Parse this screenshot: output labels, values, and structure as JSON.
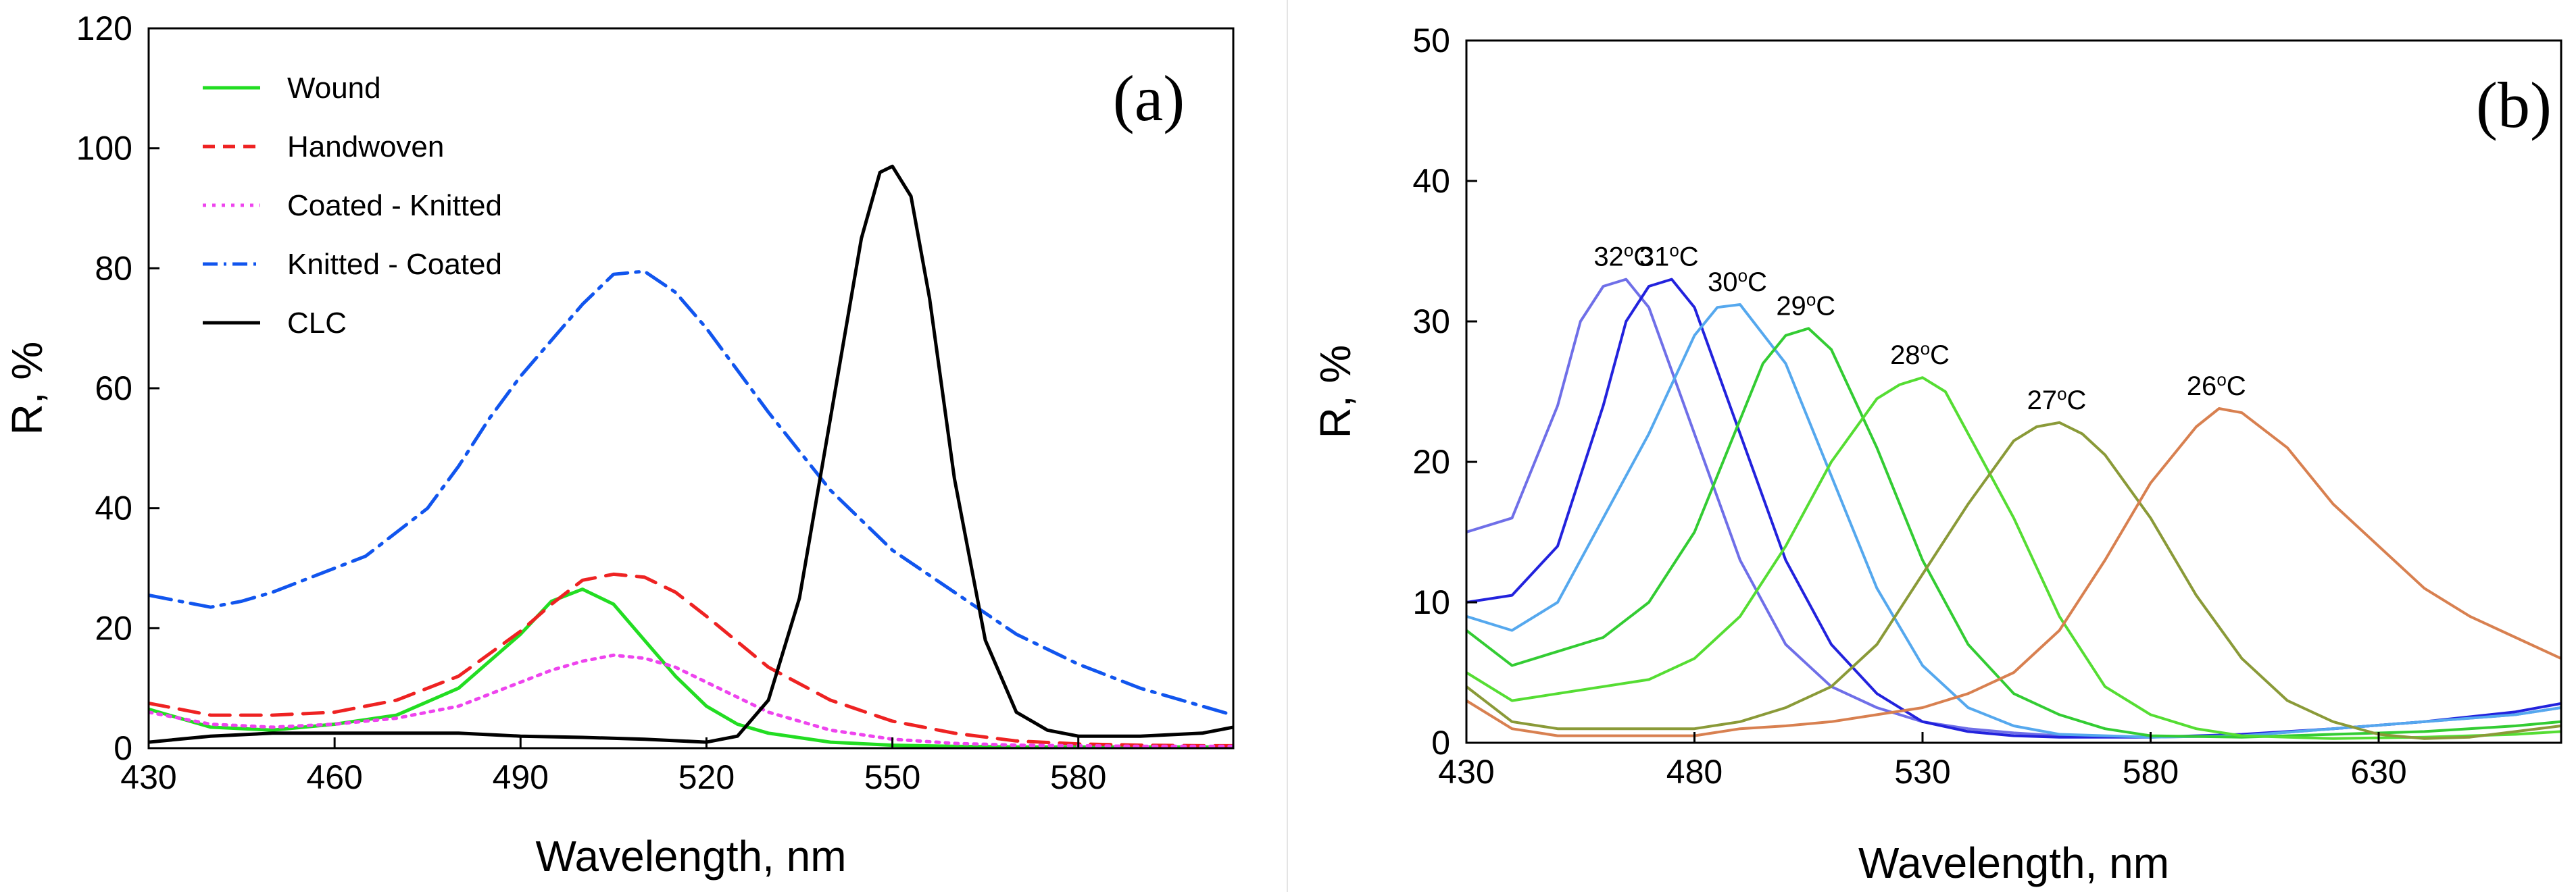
{
  "chart_data": [
    {
      "type": "line",
      "panel_label": "(a)",
      "title": "",
      "xlabel": "Wavelength, nm",
      "ylabel": "R, %",
      "xlim": [
        430,
        605
      ],
      "ylim": [
        0,
        120
      ],
      "xticks": [
        430,
        460,
        490,
        520,
        550,
        580
      ],
      "yticks": [
        0,
        20,
        40,
        60,
        80,
        100,
        120
      ],
      "legend_position": "top-left",
      "series": [
        {
          "name": "Wound",
          "color": "#22dd22",
          "dash": "solid",
          "x": [
            430,
            440,
            450,
            460,
            470,
            480,
            490,
            495,
            500,
            505,
            510,
            515,
            520,
            525,
            530,
            540,
            550,
            560,
            570,
            580,
            590,
            600,
            605
          ],
          "y": [
            6.5,
            3.5,
            3,
            4,
            5.5,
            10,
            19,
            24.5,
            26.5,
            24,
            18,
            12,
            7,
            4,
            2.5,
            1,
            0.5,
            0.3,
            0.2,
            0.2,
            0.2,
            0.2,
            0.2
          ]
        },
        {
          "name": "Handwoven",
          "color": "#ee2222",
          "dash": "dashed",
          "x": [
            430,
            440,
            450,
            460,
            470,
            480,
            490,
            495,
            500,
            505,
            510,
            515,
            520,
            530,
            540,
            550,
            560,
            570,
            580,
            590,
            600,
            605
          ],
          "y": [
            7.5,
            5.5,
            5.5,
            6,
            8,
            12,
            19.5,
            24,
            28,
            29,
            28.5,
            26,
            22,
            13.5,
            8,
            4.5,
            2.5,
            1.2,
            0.7,
            0.5,
            0.4,
            0.4
          ]
        },
        {
          "name": "Coated - Knitted",
          "color": "#ee44ee",
          "dash": "dotted",
          "x": [
            430,
            440,
            450,
            460,
            470,
            480,
            490,
            495,
            500,
            505,
            510,
            515,
            520,
            530,
            540,
            550,
            560,
            570,
            580,
            590,
            600,
            605
          ],
          "y": [
            6,
            4,
            3.5,
            4,
            5,
            7,
            11,
            13,
            14.5,
            15.5,
            15,
            13.5,
            11,
            6,
            3,
            1.5,
            0.8,
            0.5,
            0.4,
            0.3,
            0.3,
            0.3
          ]
        },
        {
          "name": "Knitted - Coated",
          "color": "#1155ee",
          "dash": "dashdot",
          "x": [
            430,
            435,
            440,
            445,
            450,
            460,
            465,
            470,
            475,
            480,
            485,
            490,
            495,
            500,
            505,
            510,
            515,
            520,
            525,
            530,
            540,
            550,
            560,
            570,
            580,
            590,
            600,
            605
          ],
          "y": [
            25.5,
            24.5,
            23.5,
            24.5,
            26,
            30,
            32,
            36,
            40,
            47,
            55,
            62,
            68,
            74,
            79,
            79.5,
            76,
            70,
            63,
            56,
            43,
            33,
            26,
            19,
            14,
            10,
            7,
            5.5
          ]
        },
        {
          "name": "CLC",
          "color": "#000000",
          "dash": "solid",
          "x": [
            430,
            440,
            450,
            460,
            470,
            480,
            490,
            500,
            510,
            520,
            525,
            530,
            535,
            540,
            545,
            548,
            550,
            553,
            556,
            560,
            565,
            570,
            575,
            580,
            590,
            600,
            605
          ],
          "y": [
            1,
            2,
            2.5,
            2.5,
            2.5,
            2.5,
            2,
            1.8,
            1.5,
            1,
            2,
            8,
            25,
            55,
            85,
            96,
            97,
            92,
            75,
            45,
            18,
            6,
            3,
            2,
            2,
            2.5,
            3.5
          ]
        }
      ]
    },
    {
      "type": "line",
      "panel_label": "(b)",
      "title": "",
      "xlabel": "Wavelength, nm",
      "ylabel": "R, %",
      "xlim": [
        430,
        670
      ],
      "ylim": [
        0,
        50
      ],
      "xticks": [
        430,
        480,
        530,
        580,
        630
      ],
      "yticks": [
        0,
        10,
        20,
        30,
        40,
        50
      ],
      "series": [
        {
          "name": "32°C",
          "label_main": "32",
          "label_sup": "o",
          "label_unit": "C",
          "color": "#6f6fe8",
          "x": [
            430,
            440,
            450,
            455,
            460,
            465,
            470,
            480,
            490,
            500,
            510,
            520,
            530,
            540,
            550,
            560,
            580,
            600,
            620,
            640,
            660,
            670
          ],
          "y": [
            15,
            16,
            24,
            30,
            32.5,
            33,
            31,
            22,
            13,
            7,
            4,
            2.5,
            1.5,
            1,
            0.7,
            0.5,
            0.4,
            0.5,
            1,
            1.5,
            2,
            2.5
          ]
        },
        {
          "name": "31°C",
          "label_main": "31",
          "label_sup": "o",
          "label_unit": "C",
          "color": "#2222dd",
          "x": [
            430,
            440,
            450,
            460,
            465,
            470,
            475,
            480,
            490,
            500,
            510,
            520,
            530,
            540,
            550,
            560,
            580,
            600,
            620,
            640,
            660,
            670
          ],
          "y": [
            10,
            10.5,
            14,
            24,
            30,
            32.5,
            33,
            31,
            22,
            13,
            7,
            3.5,
            1.5,
            0.8,
            0.5,
            0.4,
            0.4,
            0.6,
            1,
            1.5,
            2.2,
            2.8
          ]
        },
        {
          "name": "30°C",
          "label_main": "30",
          "label_sup": "o",
          "label_unit": "C",
          "color": "#55a8ee",
          "x": [
            430,
            440,
            450,
            460,
            470,
            480,
            485,
            490,
            500,
            510,
            520,
            530,
            540,
            550,
            560,
            580,
            600,
            620,
            640,
            660,
            670
          ],
          "y": [
            9,
            8,
            10,
            16,
            22,
            29,
            31,
            31.2,
            27,
            19,
            11,
            5.5,
            2.5,
            1.2,
            0.6,
            0.4,
            0.5,
            1,
            1.5,
            2,
            2.5
          ]
        },
        {
          "name": "29°C",
          "label_main": "29",
          "label_sup": "o",
          "label_unit": "C",
          "color": "#33cc33",
          "x": [
            430,
            440,
            450,
            460,
            470,
            480,
            490,
            495,
            500,
            505,
            510,
            520,
            530,
            540,
            550,
            560,
            570,
            580,
            600,
            620,
            640,
            660,
            670
          ],
          "y": [
            8,
            5.5,
            6.5,
            7.5,
            10,
            15,
            23,
            27,
            29,
            29.5,
            28,
            21,
            13,
            7,
            3.5,
            2,
            1,
            0.5,
            0.4,
            0.6,
            0.8,
            1.2,
            1.5
          ]
        },
        {
          "name": "28°C",
          "label_main": "28",
          "label_sup": "o",
          "label_unit": "C",
          "color": "#55dd33",
          "x": [
            430,
            440,
            450,
            460,
            470,
            480,
            490,
            500,
            510,
            520,
            525,
            530,
            535,
            540,
            550,
            560,
            570,
            580,
            590,
            600,
            620,
            640,
            660,
            670
          ],
          "y": [
            5,
            3,
            3.5,
            4,
            4.5,
            6,
            9,
            14,
            20,
            24.5,
            25.5,
            26,
            25,
            22,
            16,
            9,
            4,
            2,
            1,
            0.5,
            0.3,
            0.4,
            0.6,
            0.8
          ]
        },
        {
          "name": "27°C",
          "label_main": "27",
          "label_sup": "o",
          "label_unit": "C",
          "color": "#8a9a38",
          "x": [
            430,
            440,
            450,
            460,
            470,
            480,
            490,
            500,
            510,
            520,
            530,
            540,
            550,
            555,
            560,
            565,
            570,
            580,
            590,
            600,
            610,
            620,
            630,
            640,
            650,
            660,
            670
          ],
          "y": [
            4,
            1.5,
            1,
            1,
            1,
            1,
            1.5,
            2.5,
            4,
            7,
            12,
            17,
            21.5,
            22.5,
            22.8,
            22,
            20.5,
            16,
            10.5,
            6,
            3,
            1.5,
            0.6,
            0.3,
            0.4,
            0.8,
            1.2
          ]
        },
        {
          "name": "26°C",
          "label_main": "26",
          "label_sup": "o",
          "label_unit": "C",
          "color": "#d88050",
          "x": [
            430,
            440,
            450,
            460,
            470,
            480,
            490,
            500,
            510,
            520,
            530,
            540,
            550,
            560,
            570,
            580,
            590,
            595,
            600,
            610,
            620,
            630,
            640,
            650,
            660,
            670
          ],
          "y": [
            3,
            1,
            0.5,
            0.5,
            0.5,
            0.5,
            1,
            1.2,
            1.5,
            2,
            2.5,
            3.5,
            5,
            8,
            13,
            18.5,
            22.5,
            23.8,
            23.5,
            21,
            17,
            14,
            11,
            9,
            7.5,
            6
          ]
        }
      ]
    }
  ]
}
